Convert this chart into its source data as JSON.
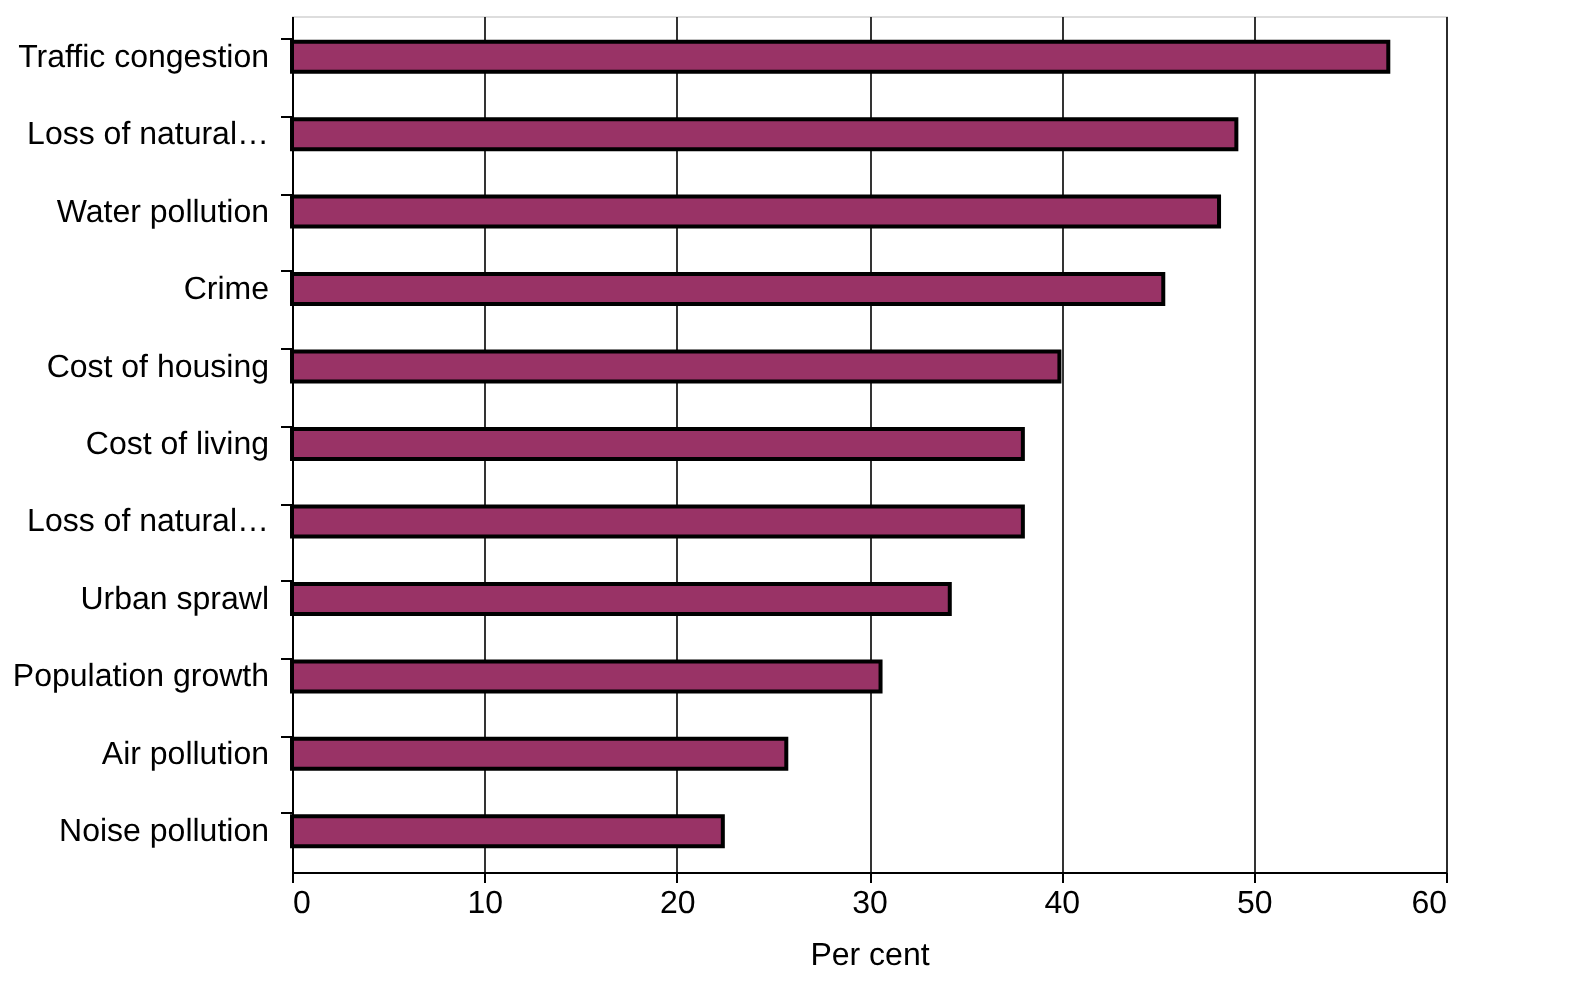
{
  "chart_data": {
    "type": "bar",
    "orientation": "horizontal",
    "xlabel": "Per cent",
    "categories": [
      "Traffic congestion",
      "Loss of natural…",
      "Water pollution",
      "Crime",
      "Cost of housing",
      "Cost of living",
      "Loss of natural…",
      "Urban sprawl",
      "Population growth",
      "Air pollution",
      "Noise pollution"
    ],
    "values": [
      57.0,
      49.1,
      48.2,
      45.3,
      39.9,
      38.0,
      38.0,
      34.2,
      30.6,
      25.7,
      22.4
    ],
    "color": "#993366",
    "xlim": [
      0,
      60
    ],
    "xticks": [
      0,
      10,
      20,
      30,
      40,
      50,
      60
    ],
    "grid": "x"
  }
}
